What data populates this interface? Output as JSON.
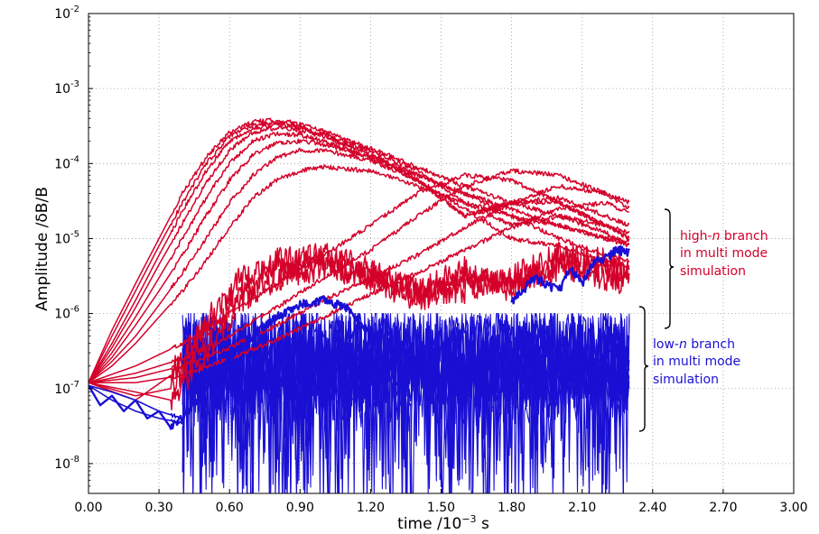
{
  "chart_data": {
    "type": "line",
    "xlabel_main": "time /10",
    "xlabel_exp": "−3",
    "xlabel_unit": " s",
    "ylabel": "Amplitude  /δB/B",
    "xlim": [
      0.0,
      3.0
    ],
    "ylim": [
      4e-09,
      0.01
    ],
    "yscale": "log",
    "grid": true,
    "x_ticks": [
      "0.00",
      "0.30",
      "0.60",
      "0.90",
      "1.20",
      "1.50",
      "1.80",
      "2.10",
      "2.40",
      "2.70",
      "3.00"
    ],
    "y_ticks": [
      {
        "base": "10",
        "exp": "-8",
        "value": 1e-08
      },
      {
        "base": "10",
        "exp": "-7",
        "value": 1e-07
      },
      {
        "base": "10",
        "exp": "-6",
        "value": 1e-06
      },
      {
        "base": "10",
        "exp": "-5",
        "value": 1e-05
      },
      {
        "base": "10",
        "exp": "-4",
        "value": 0.0001
      },
      {
        "base": "10",
        "exp": "-3",
        "value": 0.001
      },
      {
        "base": "10",
        "exp": "-2",
        "value": 0.01
      }
    ],
    "colors": {
      "high_n": "#d4002a",
      "low_n": "#1a10d4"
    },
    "annotations": {
      "high_n": {
        "line1_pre": "high-",
        "line1_em": "n",
        "line1_post": " branch",
        "line2": "in multi mode",
        "line3": "simulation"
      },
      "low_n": {
        "line1_pre": "low-",
        "line1_em": "n",
        "line1_post": " branch",
        "line2": "in multi mode",
        "line3": "simulation"
      }
    },
    "series_high_n": [
      {
        "x": [
          0.0,
          0.1,
          0.2,
          0.3,
          0.4,
          0.5,
          0.6,
          0.7,
          0.8,
          0.9,
          1.0,
          1.2,
          1.4,
          1.6,
          1.8,
          2.0,
          2.2,
          2.3
        ],
        "y": [
          1.2e-07,
          6e-07,
          2.5e-06,
          1e-05,
          4e-05,
          0.00012,
          0.00026,
          0.00036,
          0.00038,
          0.00034,
          0.00027,
          0.00016,
          9e-05,
          5e-05,
          3e-05,
          2e-05,
          1.5e-05,
          1.2e-05
        ]
      },
      {
        "x": [
          0.0,
          0.1,
          0.2,
          0.3,
          0.4,
          0.5,
          0.6,
          0.7,
          0.8,
          0.9,
          1.0,
          1.2,
          1.4,
          1.6,
          1.8,
          2.0,
          2.2,
          2.3
        ],
        "y": [
          1.2e-07,
          5e-07,
          2e-06,
          8e-06,
          3e-05,
          0.0001,
          0.00023,
          0.00033,
          0.00035,
          0.00031,
          0.00024,
          0.00013,
          7e-05,
          4e-05,
          2.5e-05,
          1.5e-05,
          1e-05,
          9e-06
        ]
      },
      {
        "x": [
          0.0,
          0.1,
          0.2,
          0.3,
          0.4,
          0.5,
          0.6,
          0.7,
          0.8,
          0.9,
          1.0,
          1.2,
          1.4,
          1.6,
          1.8,
          2.0,
          2.2,
          2.3
        ],
        "y": [
          1.2e-07,
          4e-07,
          1.5e-06,
          6e-06,
          2.3e-05,
          8e-05,
          0.0002,
          0.0003,
          0.00033,
          0.0003,
          0.00025,
          0.00015,
          8e-05,
          3e-05,
          1.5e-05,
          2e-05,
          1.2e-05,
          8e-06
        ]
      },
      {
        "x": [
          0.0,
          0.1,
          0.2,
          0.3,
          0.4,
          0.5,
          0.6,
          0.7,
          0.8,
          0.9,
          1.0,
          1.2,
          1.4,
          1.6,
          1.8,
          2.0,
          2.2,
          2.3
        ],
        "y": [
          1.2e-07,
          3.5e-07,
          1.2e-06,
          4.5e-06,
          1.6e-05,
          5.5e-05,
          0.00015,
          0.00026,
          0.0003,
          0.00028,
          0.00023,
          0.00014,
          6e-05,
          2e-05,
          3e-05,
          3e-05,
          1.5e-05,
          1e-05
        ]
      },
      {
        "x": [
          0.0,
          0.1,
          0.2,
          0.3,
          0.4,
          0.5,
          0.6,
          0.7,
          0.8,
          0.9,
          1.0,
          1.2,
          1.4,
          1.6,
          1.8,
          2.0,
          2.2,
          2.3
        ],
        "y": [
          1.2e-07,
          3e-07,
          9e-07,
          3e-06,
          1e-05,
          3.5e-05,
          0.0001,
          0.0002,
          0.00025,
          0.00024,
          0.0002,
          0.00012,
          6e-05,
          2.5e-05,
          1e-05,
          8e-06,
          5e-06,
          4e-06
        ]
      },
      {
        "x": [
          0.0,
          0.1,
          0.2,
          0.3,
          0.4,
          0.5,
          0.6,
          0.7,
          0.8,
          0.9,
          1.0,
          1.2,
          1.4,
          1.6,
          1.8,
          2.0,
          2.2,
          2.3
        ],
        "y": [
          1.2e-07,
          2.6e-07,
          7e-07,
          2e-06,
          6e-06,
          2e-05,
          6e-05,
          0.00013,
          0.00019,
          0.0002,
          0.00018,
          0.00012,
          7e-05,
          4e-05,
          2e-05,
          1e-05,
          6e-06,
          5e-06
        ]
      },
      {
        "x": [
          0.0,
          0.1,
          0.2,
          0.3,
          0.4,
          0.5,
          0.6,
          0.7,
          0.8,
          0.9,
          1.0,
          1.2,
          1.4,
          1.6,
          1.8,
          2.0,
          2.2,
          2.3
        ],
        "y": [
          1.2e-07,
          2.3e-07,
          5e-07,
          1.3e-06,
          3.5e-06,
          1e-05,
          3e-05,
          7e-05,
          0.00012,
          0.00015,
          0.00015,
          0.00011,
          6e-05,
          2e-05,
          3e-05,
          3.5e-05,
          2e-05,
          1.5e-05
        ]
      },
      {
        "x": [
          0.0,
          0.1,
          0.2,
          0.3,
          0.4,
          0.5,
          0.6,
          0.7,
          0.8,
          0.9,
          1.0,
          1.2,
          1.4,
          1.6,
          1.8,
          2.0,
          2.2,
          2.3
        ],
        "y": [
          1.2e-07,
          2e-07,
          4e-07,
          9e-07,
          2e-06,
          5e-06,
          1.4e-05,
          3.5e-05,
          6e-05,
          8e-05,
          9e-05,
          8e-05,
          5e-05,
          3e-05,
          2e-05,
          1.5e-05,
          1e-05,
          8e-06
        ]
      },
      {
        "x": [
          0.0,
          0.2,
          0.4,
          0.6,
          0.8,
          1.0,
          1.2,
          1.4,
          1.6,
          1.8,
          2.0,
          2.2,
          2.3
        ],
        "y": [
          1.2e-07,
          2e-07,
          4e-07,
          1e-06,
          2.5e-06,
          6e-06,
          1.5e-05,
          4e-05,
          7e-05,
          6e-05,
          3e-05,
          1.5e-05,
          1e-05
        ]
      },
      {
        "x": [
          0.0,
          0.2,
          0.4,
          0.6,
          0.8,
          1.0,
          1.2,
          1.4,
          1.6,
          1.8,
          2.0,
          2.2,
          2.3
        ],
        "y": [
          1.2e-07,
          1.6e-07,
          2.5e-07,
          5e-07,
          1.2e-06,
          3e-06,
          7e-06,
          2e-05,
          5e-05,
          8e-05,
          7e-05,
          4e-05,
          3e-05
        ]
      },
      {
        "x": [
          0.0,
          0.2,
          0.4,
          0.6,
          0.8,
          1.0,
          1.2,
          1.4,
          1.6,
          1.8,
          2.0,
          2.2,
          2.3
        ],
        "y": [
          1.2e-07,
          1.4e-07,
          2e-07,
          3.5e-07,
          7e-07,
          1.5e-06,
          3e-06,
          6e-06,
          1.4e-05,
          3e-05,
          5e-05,
          4e-05,
          2.5e-05
        ]
      },
      {
        "x": [
          0.0,
          0.2,
          0.4,
          0.6,
          0.8,
          1.0,
          1.2,
          1.4,
          1.6,
          1.8,
          2.0,
          2.2,
          2.3
        ],
        "y": [
          1.2e-07,
          1.2e-07,
          1.5e-07,
          2.5e-07,
          4.5e-07,
          9e-07,
          1.8e-06,
          3.5e-06,
          7e-06,
          1.4e-05,
          2.5e-05,
          3e-05,
          2.2e-05
        ]
      },
      {
        "x": [
          0.0,
          0.2,
          0.35,
          0.5,
          0.65,
          0.8,
          1.0,
          1.2,
          1.4,
          1.6,
          1.8,
          2.0,
          2.2,
          2.3
        ],
        "y": [
          1.2e-07,
          9e-08,
          7e-08,
          3e-07,
          1.5e-06,
          3e-06,
          4e-06,
          3e-06,
          2e-06,
          4e-06,
          2e-06,
          5e-06,
          4e-06,
          3e-06
        ]
      },
      {
        "x": [
          0.0,
          0.2,
          0.35,
          0.5,
          0.65,
          0.8,
          1.0,
          1.2,
          1.4,
          1.6,
          1.8,
          2.0,
          2.2,
          2.3
        ],
        "y": [
          1.2e-07,
          8e-08,
          1e-07,
          5e-07,
          2e-06,
          4e-06,
          5e-06,
          3e-06,
          1.5e-06,
          3e-06,
          2.5e-06,
          4e-06,
          3e-06,
          2.5e-06
        ]
      },
      {
        "x": [
          0.0,
          0.2,
          0.35,
          0.5,
          0.65,
          0.8,
          1.0,
          1.2,
          1.4,
          1.6,
          1.8,
          2.0,
          2.2,
          2.3
        ],
        "y": [
          1.2e-07,
          7e-08,
          1.5e-07,
          8e-07,
          3e-06,
          5e-06,
          6e-06,
          4e-06,
          2e-06,
          2e-06,
          3e-06,
          6e-06,
          5e-06,
          4e-06
        ]
      }
    ],
    "series_low_n": [
      {
        "x": [
          0.0,
          0.05,
          0.1,
          0.15,
          0.2,
          0.25,
          0.3,
          0.35,
          0.4,
          0.5,
          0.6,
          0.7,
          0.8,
          0.9,
          1.0,
          1.1,
          1.2
        ],
        "y": [
          1.1e-07,
          6e-08,
          8e-08,
          5e-08,
          7e-08,
          4e-08,
          5e-08,
          3e-08,
          4e-08,
          1e-07,
          2.5e-07,
          5e-07,
          9e-07,
          1.3e-06,
          1.5e-06,
          1.2e-06,
          5e-07
        ]
      },
      {
        "x": [
          1.8,
          1.9,
          2.0,
          2.05,
          2.1,
          2.15,
          2.2,
          2.25,
          2.3
        ],
        "y": [
          1.4e-06,
          3e-06,
          2e-06,
          4e-06,
          2.5e-06,
          5e-06,
          5.5e-06,
          7e-06,
          6.5e-06
        ]
      },
      {
        "x": [
          0.0,
          0.1,
          0.2,
          0.3,
          0.4
        ],
        "y": [
          1.1e-07,
          7e-08,
          5e-08,
          4e-08,
          3.5e-08
        ]
      },
      {
        "x": [
          0.0,
          0.1,
          0.2,
          0.3,
          0.4
        ],
        "y": [
          1.1e-07,
          9e-08,
          7e-08,
          5e-08,
          4e-08
        ]
      }
    ],
    "noise_band_low_n": {
      "x_range": [
        0.4,
        2.3
      ],
      "y_range": [
        2e-09,
        1e-06
      ],
      "count": 12
    }
  }
}
